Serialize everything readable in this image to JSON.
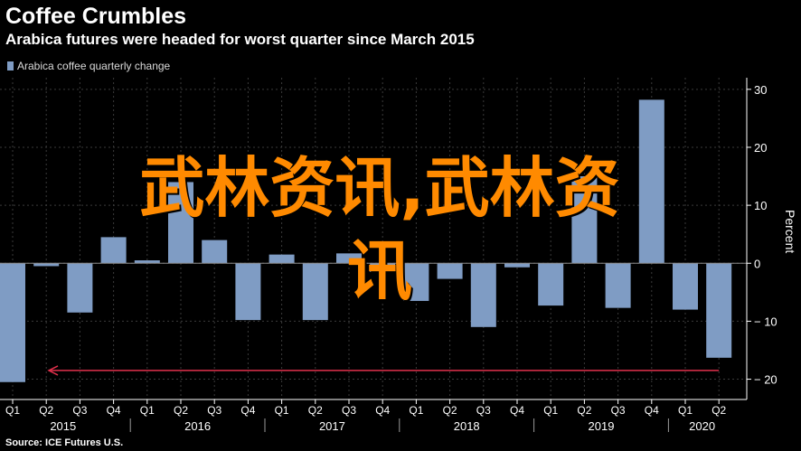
{
  "header": {
    "title": "Coffee Crumbles",
    "subtitle": "Arabica futures were headed for worst quarter since March 2015"
  },
  "legend": {
    "label": "Arabica coffee quarterly change"
  },
  "source": "Source: ICE Futures U.S.",
  "watermark": {
    "line1": "武林资讯,武林资",
    "line2": "讯"
  },
  "colors": {
    "bar": "#7f9cc4",
    "arrow": "#e0304b",
    "axis": "#ffffff",
    "grid": "#3a3a3a"
  },
  "chart_data": {
    "type": "bar",
    "categories": [
      "Q1",
      "Q2",
      "Q3",
      "Q4",
      "Q1",
      "Q2",
      "Q3",
      "Q4",
      "Q1",
      "Q2",
      "Q3",
      "Q4",
      "Q1",
      "Q2",
      "Q3",
      "Q4",
      "Q1",
      "Q2",
      "Q3",
      "Q4",
      "Q1",
      "Q2"
    ],
    "year_groups": [
      {
        "label": "2015",
        "start": 0,
        "end": 3
      },
      {
        "label": "2016",
        "start": 4,
        "end": 7
      },
      {
        "label": "2017",
        "start": 8,
        "end": 11
      },
      {
        "label": "2018",
        "start": 12,
        "end": 15
      },
      {
        "label": "2019",
        "start": 16,
        "end": 19
      },
      {
        "label": "2020",
        "start": 20,
        "end": 21
      }
    ],
    "series": [
      {
        "values": [
          -20.5,
          -0.5,
          -8.5,
          4.5,
          0.5,
          14.0,
          4.0,
          -9.8,
          1.5,
          -9.8,
          1.7,
          -1.5,
          -6.5,
          -2.7,
          -11.0,
          -0.7,
          -7.3,
          15.0,
          -7.7,
          28.2,
          -8.0,
          -16.3
        ]
      }
    ],
    "y_ticks": [
      "30",
      "20",
      "10",
      "0",
      "-10",
      "-20"
    ],
    "ylim": [
      -23.5,
      32
    ],
    "ylabel": "Percent",
    "grid": true,
    "y_axis_position": "right",
    "legend_position": "top-left",
    "annotation": {
      "type": "arrow",
      "from_index": 21,
      "to_index": 0,
      "y": -18.5
    }
  }
}
